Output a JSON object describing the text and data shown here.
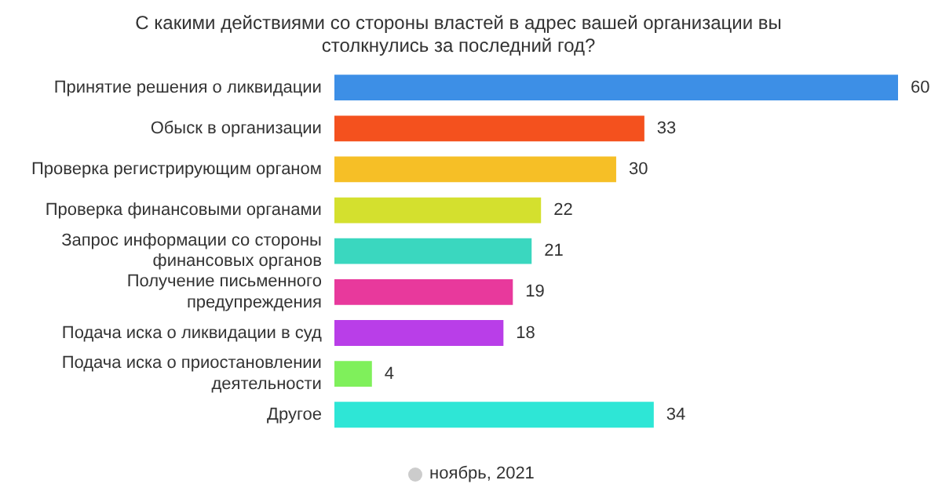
{
  "chart_data": {
    "type": "bar",
    "orientation": "horizontal",
    "title": "С какими действиями со стороны властей в адрес вашей организации вы столкнулись за последний год?",
    "categories": [
      "Принятие решения о ликвидации",
      "Обыск в организации",
      "Проверка регистрирующим органом",
      "Проверка финансовыми органами",
      "Запрос информации со стороны финансовых органов",
      "Получение письменного предупреждения",
      "Подача иска о ликвидации в суд",
      "Подача иска о приостановлении деятельности",
      "Другое"
    ],
    "series": [
      {
        "name": "ноябрь, 2021",
        "color": "#cccccc",
        "colors": [
          "#3d8fe6",
          "#f4511e",
          "#f6bf26",
          "#d4e02e",
          "#3ad7bf",
          "#e8399c",
          "#b93ee8",
          "#7ff05b",
          "#2ee6d6"
        ],
        "values": [
          60,
          33,
          30,
          22,
          21,
          19,
          18,
          4,
          34
        ]
      }
    ],
    "data_labels": true,
    "legend": "bottom",
    "tick_labels": "y",
    "grid": false
  }
}
